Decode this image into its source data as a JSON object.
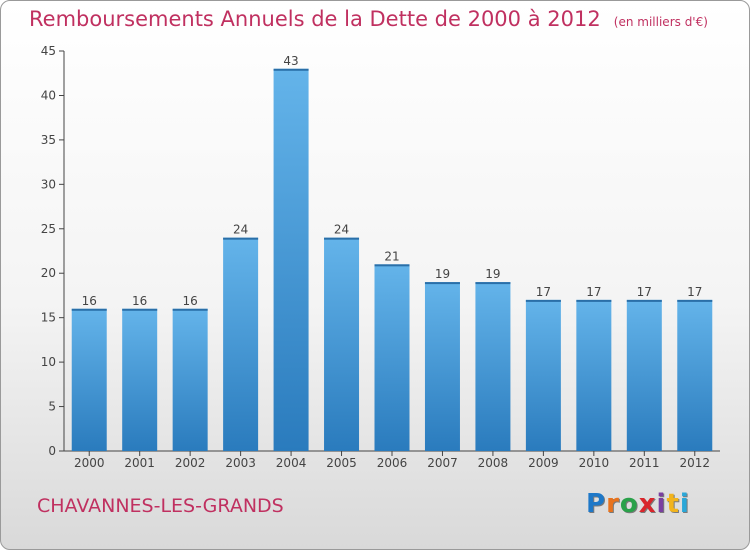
{
  "chart_data": {
    "type": "bar",
    "title": "Remboursements Annuels de la Dette de 2000 à 2012",
    "subtitle": "(en milliers d'€)",
    "categories": [
      "2000",
      "2001",
      "2002",
      "2003",
      "2004",
      "2005",
      "2006",
      "2007",
      "2008",
      "2009",
      "2010",
      "2011",
      "2012"
    ],
    "values": [
      16,
      16,
      16,
      24,
      43,
      24,
      21,
      19,
      19,
      17,
      17,
      17,
      17
    ],
    "data_labels": [
      "16",
      "16",
      "16",
      "24",
      "43",
      "24",
      "21",
      "19",
      "19",
      "17",
      "17",
      "17",
      "17"
    ],
    "ylim": [
      0,
      45
    ],
    "yticks": [
      0,
      5,
      10,
      15,
      20,
      25,
      30,
      35,
      40,
      45
    ],
    "ytick_labels": [
      "0",
      "5",
      "10",
      "15",
      "20",
      "25",
      "30",
      "35",
      "40",
      "45"
    ],
    "grid": false,
    "legend": "none",
    "colors": {
      "bar_top": "#64b4ea",
      "bar_bottom": "#2a7bbd",
      "title": "#c03060",
      "axis": "#444444"
    }
  },
  "footer": {
    "commune": "CHAVANNES-LES-GRANDS",
    "brand_letters": [
      {
        "ch": "P",
        "color": "#1e78c8"
      },
      {
        "ch": "r",
        "color": "#e8731e"
      },
      {
        "ch": "o",
        "color": "#2aa14a"
      },
      {
        "ch": "x",
        "color": "#d9262c"
      },
      {
        "ch": "i",
        "color": "#7a3fa0"
      },
      {
        "ch": "t",
        "color": "#f2b41c"
      },
      {
        "ch": "i",
        "color": "#2aa7d8"
      }
    ]
  }
}
